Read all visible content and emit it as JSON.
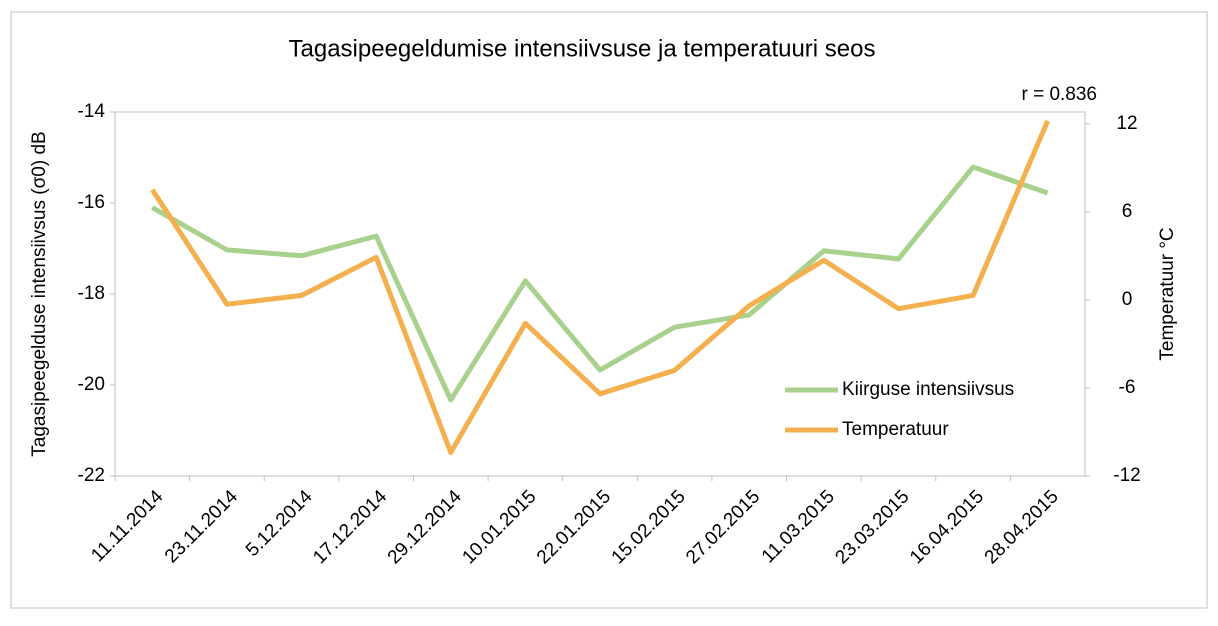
{
  "chart_data": {
    "type": "line",
    "title": "Tagasipeegeldumise intensiivsuse ja temperatuuri seos",
    "annotation": "r = 0.836",
    "y_label": "Tagasipeegelduse intensiivsus (σ0) dB",
    "y2_label": "Temperatuur °C",
    "categories": [
      "11.11.2014",
      "23.11.2014",
      "5.12.2014",
      "17.12.2014",
      "29.12.2014",
      "10.01.2015",
      "22.01.2015",
      "15.02.2015",
      "27.02.2015",
      "11.03.2015",
      "23.03.2015",
      "16.04.2015",
      "28.04.2015"
    ],
    "series": [
      {
        "name": "Kiirguse intensiivsus",
        "color": "#a9d18e",
        "axis": "y",
        "values": [
          -16.1,
          -17.03,
          -17.16,
          -16.73,
          -20.33,
          -17.71,
          -19.67,
          -18.73,
          -18.46,
          -17.05,
          -17.23,
          -15.21,
          -15.78
        ]
      },
      {
        "name": "Temperatuur",
        "color": "#f4b04f",
        "axis": "y2",
        "values": [
          7.5,
          -0.3,
          0.3,
          2.9,
          -10.4,
          -1.6,
          -6.4,
          -4.8,
          -0.4,
          2.7,
          -0.6,
          0.3,
          12.2
        ]
      }
    ],
    "ylim": [
      -22,
      -14
    ],
    "yticks": [
      -22,
      -20,
      -18,
      -16,
      -14
    ],
    "y2lim": [
      -12,
      12.8
    ],
    "y2ticks": [
      -12,
      -6,
      0,
      6,
      12
    ],
    "legend": "lower-right"
  }
}
